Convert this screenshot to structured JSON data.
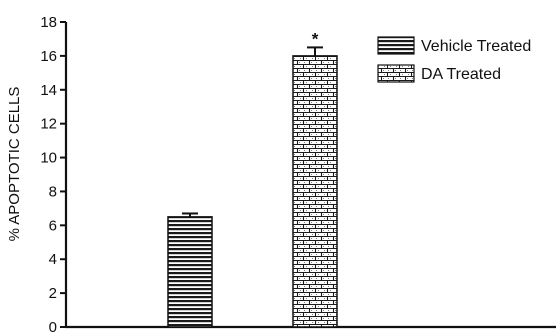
{
  "chart_data": {
    "type": "bar",
    "title": "",
    "xlabel": "",
    "ylabel": "% APOPTOTIC CELLS",
    "ylim": [
      0,
      18
    ],
    "yticks": [
      0,
      2,
      4,
      6,
      8,
      10,
      12,
      14,
      16,
      18
    ],
    "categories": [
      "",
      ""
    ],
    "series": [
      {
        "name": "Vehicle Treated",
        "value": 6.5,
        "error": 0.2,
        "pattern": "horizontal-stripes"
      },
      {
        "name": "DA Treated",
        "value": 16.0,
        "error": 0.5,
        "pattern": "brick",
        "annotation": "*"
      }
    ],
    "legend_position": "top-right",
    "grid": false
  }
}
